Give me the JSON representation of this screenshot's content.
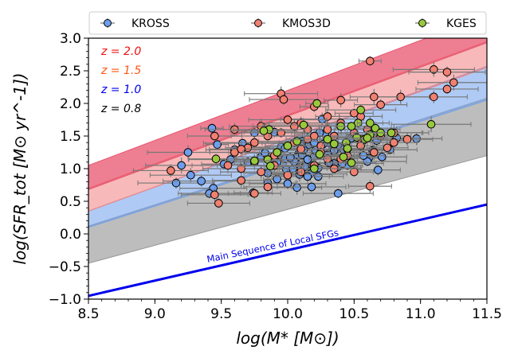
{
  "chart_data": {
    "type": "scatter",
    "title": "",
    "xlabel": "log(M* [M⊙])",
    "ylabel": "log(SFR_tot [M⊙ yr^-1])",
    "xlim": [
      8.5,
      11.5
    ],
    "ylim": [
      -1.0,
      3.0
    ],
    "x_ticks": [
      "8.5",
      "9.0",
      "9.5",
      "10.0",
      "10.5",
      "11.0",
      "11.5"
    ],
    "y_ticks": [
      "−1.0",
      "−0.5",
      "0.0",
      "0.5",
      "1.0",
      "1.5",
      "2.0",
      "2.5",
      "3.0"
    ],
    "legend_position": "top",
    "redshift_labels": [
      {
        "text": "z = 2.0",
        "color": "#ee1111"
      },
      {
        "text": "z = 1.5",
        "color": "#ff5511"
      },
      {
        "text": "z = 1.0",
        "color": "#0000ee"
      },
      {
        "text": "z = 0.8",
        "color": "#000000"
      }
    ],
    "bands": [
      {
        "name": "z=0.8",
        "color": "#9a9a9a",
        "opacity": 0.65,
        "x": [
          8.5,
          11.5
        ],
        "lower": [
          -0.45,
          1.2
        ],
        "upper": [
          0.12,
          2.08
        ]
      },
      {
        "name": "z=1.0",
        "color": "#6d9eeb",
        "opacity": 0.55,
        "x": [
          8.5,
          11.5
        ],
        "lower": [
          0.1,
          2.05
        ],
        "upper": [
          0.35,
          2.57
        ]
      },
      {
        "name": "z=1.5",
        "color": "#f08080",
        "opacity": 0.55,
        "x": [
          8.5,
          11.5
        ],
        "lower": [
          0.35,
          2.55
        ],
        "upper": [
          0.7,
          2.95
        ]
      },
      {
        "name": "z=2.0",
        "color": "#e8546e",
        "opacity": 0.75,
        "x": [
          8.5,
          11.5
        ],
        "lower": [
          0.68,
          2.93
        ],
        "upper": [
          1.05,
          3.35
        ]
      }
    ],
    "main_sequence": {
      "label": "Main Sequence of Local SFGs",
      "color": "#0000ee",
      "x": [
        8.5,
        11.5
      ],
      "y": [
        -0.95,
        0.45
      ]
    },
    "series": [
      {
        "name": "KROSS",
        "color": "#6d9eeb",
        "points": [
          [
            9.43,
            1.62
          ],
          [
            9.25,
            1.25
          ],
          [
            9.16,
            0.78
          ],
          [
            9.2,
            1.05
          ],
          [
            9.44,
            0.7
          ],
          [
            9.41,
            0.62
          ],
          [
            9.6,
            1.29
          ],
          [
            9.8,
            1.18
          ],
          [
            9.85,
            0.93
          ],
          [
            9.75,
            1.55
          ],
          [
            10.38,
            1.03
          ],
          [
            10.61,
            1.16
          ],
          [
            10.35,
            1.08
          ],
          [
            10.11,
            1.42
          ],
          [
            10.26,
            1.76
          ],
          [
            9.66,
            1.39
          ],
          [
            10.17,
            0.92
          ],
          [
            9.95,
            1.33
          ],
          [
            10.08,
            1.22
          ],
          [
            10.32,
            1.25
          ],
          [
            9.7,
            1.1
          ],
          [
            10.07,
            0.71
          ],
          [
            9.52,
            1.07
          ],
          [
            10.64,
            1.28
          ],
          [
            10.3,
            1.21
          ],
          [
            10.45,
            1.05
          ],
          [
            10.06,
            1.1
          ],
          [
            10.23,
            1.01
          ],
          [
            10.2,
            1.19
          ],
          [
            10.09,
            1.39
          ],
          [
            9.88,
            1.15
          ],
          [
            10.67,
            1.43
          ],
          [
            10.28,
            1.53
          ],
          [
            9.85,
            0.78
          ],
          [
            9.99,
            0.99
          ],
          [
            10.16,
            1.37
          ],
          [
            10.04,
            1.0
          ],
          [
            10.19,
            1.05
          ],
          [
            10.56,
            1.41
          ],
          [
            9.92,
            0.84
          ],
          [
            10.23,
            0.88
          ],
          [
            10.21,
            1.28
          ],
          [
            10.0,
            0.77
          ],
          [
            10.15,
            0.88
          ],
          [
            10.07,
            1.18
          ],
          [
            9.98,
            1.15
          ],
          [
            10.48,
            1.47
          ],
          [
            10.1,
            1.0
          ],
          [
            10.38,
            1.34
          ],
          [
            10.11,
            1.21
          ],
          [
            9.74,
            0.63
          ],
          [
            10.12,
            1.29
          ],
          [
            10.42,
            1.29
          ],
          [
            10.05,
            1.11
          ],
          [
            10.41,
            1.08
          ],
          [
            10.6,
            1.11
          ],
          [
            9.92,
            1.1
          ],
          [
            10.18,
            0.72
          ],
          [
            10.4,
            1.65
          ],
          [
            10.31,
            1.4
          ],
          [
            10.77,
            1.29
          ],
          [
            10.71,
            1.18
          ],
          [
            10.68,
            0.98
          ],
          [
            9.83,
            1.24
          ],
          [
            9.98,
            1.31
          ],
          [
            10.02,
            1.17
          ],
          [
            10.27,
            1.38
          ],
          [
            9.57,
            1.14
          ],
          [
            10.13,
            1.03
          ],
          [
            10.31,
            1.09
          ],
          [
            10.38,
            0.62
          ],
          [
            10.09,
            0.91
          ],
          [
            9.9,
            1.56
          ],
          [
            10.24,
            1.55
          ],
          [
            10.97,
            1.46
          ],
          [
            10.82,
            1.47
          ],
          [
            10.57,
            1.2
          ],
          [
            10.15,
            1.14
          ],
          [
            10.35,
            1.28
          ],
          [
            10.2,
            1.4
          ],
          [
            9.47,
            1.37
          ],
          [
            9.27,
            0.9
          ],
          [
            9.35,
            0.81
          ]
        ]
      },
      {
        "name": "KMOS3D",
        "color": "#f08070",
        "points": [
          [
            10.62,
            2.65
          ],
          [
            11.1,
            2.52
          ],
          [
            11.2,
            2.48
          ],
          [
            11.25,
            2.32
          ],
          [
            11.1,
            2.1
          ],
          [
            11.2,
            2.22
          ],
          [
            10.85,
            2.1
          ],
          [
            10.7,
            1.98
          ],
          [
            10.65,
            2.1
          ],
          [
            10.55,
            1.8
          ],
          [
            10.5,
            1.85
          ],
          [
            10.4,
            2.05
          ],
          [
            10.2,
            1.95
          ],
          [
            10.3,
            1.8
          ],
          [
            10.1,
            1.7
          ],
          [
            10.0,
            1.75
          ],
          [
            9.95,
            2.15
          ],
          [
            9.97,
            2.06
          ],
          [
            9.8,
            1.65
          ],
          [
            9.6,
            1.6
          ],
          [
            9.45,
            1.5
          ],
          [
            9.6,
            1.25
          ],
          [
            9.7,
            1.32
          ],
          [
            9.75,
            1.1
          ],
          [
            9.9,
            1.2
          ],
          [
            10.05,
            1.4
          ],
          [
            10.15,
            1.45
          ],
          [
            10.25,
            1.35
          ],
          [
            10.35,
            1.5
          ],
          [
            10.45,
            1.3
          ],
          [
            10.55,
            1.45
          ],
          [
            10.6,
            1.6
          ],
          [
            10.7,
            1.5
          ],
          [
            10.8,
            1.55
          ],
          [
            10.9,
            1.45
          ],
          [
            10.8,
            1.4
          ],
          [
            10.75,
            1.32
          ],
          [
            10.3,
            1.15
          ],
          [
            10.2,
            1.05
          ],
          [
            10.1,
            0.95
          ],
          [
            10.0,
            0.9
          ],
          [
            9.8,
            0.95
          ],
          [
            9.65,
            1.0
          ],
          [
            9.55,
            1.05
          ],
          [
            9.45,
            0.6
          ],
          [
            9.48,
            0.47
          ],
          [
            9.65,
            0.82
          ],
          [
            9.75,
            0.62
          ],
          [
            9.85,
            0.72
          ],
          [
            10.62,
            0.73
          ],
          [
            10.5,
            0.95
          ],
          [
            10.4,
            1.15
          ],
          [
            10.25,
            1.25
          ],
          [
            10.15,
            1.6
          ],
          [
            10.05,
            1.65
          ],
          [
            9.95,
            1.55
          ],
          [
            9.85,
            1.5
          ],
          [
            9.75,
            1.4
          ],
          [
            9.65,
            1.3
          ],
          [
            9.9,
            1.05
          ],
          [
            10.35,
            1.0
          ],
          [
            10.45,
            1.2
          ],
          [
            10.55,
            1.35
          ],
          [
            10.65,
            1.25
          ],
          [
            10.3,
            1.6
          ],
          [
            10.4,
            1.7
          ],
          [
            10.5,
            1.55
          ],
          [
            10.2,
            1.5
          ],
          [
            10.1,
            1.3
          ],
          [
            9.12,
            0.97
          ]
        ]
      },
      {
        "name": "KGES",
        "color": "#98c93c",
        "points": [
          [
            10.22,
            2.0
          ],
          [
            10.12,
            1.67
          ],
          [
            10.07,
            1.42
          ],
          [
            9.86,
            1.6
          ],
          [
            9.82,
            1.58
          ],
          [
            10.53,
            1.7
          ],
          [
            10.52,
            1.48
          ],
          [
            10.58,
            1.45
          ],
          [
            10.62,
            1.52
          ],
          [
            10.66,
            1.62
          ],
          [
            10.4,
            1.65
          ],
          [
            10.44,
            1.4
          ],
          [
            10.45,
            1.31
          ],
          [
            10.35,
            1.38
          ],
          [
            10.3,
            1.45
          ],
          [
            10.24,
            1.22
          ],
          [
            10.2,
            1.0
          ],
          [
            9.92,
            1.25
          ],
          [
            9.85,
            1.14
          ],
          [
            9.75,
            1.12
          ],
          [
            9.46,
            1.15
          ],
          [
            10.48,
            1.09
          ],
          [
            10.0,
            1.35
          ],
          [
            10.6,
            1.47
          ],
          [
            10.42,
            1.18
          ],
          [
            10.48,
            1.65
          ],
          [
            10.62,
            1.7
          ],
          [
            10.7,
            1.55
          ],
          [
            11.08,
            1.68
          ],
          [
            10.78,
            1.55
          ],
          [
            10.55,
            1.9
          ],
          [
            9.87,
            1.04
          ]
        ]
      }
    ]
  },
  "legend": [
    {
      "label": "KROSS",
      "color": "#6d9eeb"
    },
    {
      "label": "KMOS3D",
      "color": "#f08070"
    },
    {
      "label": "KGES",
      "color": "#98c93c"
    }
  ]
}
